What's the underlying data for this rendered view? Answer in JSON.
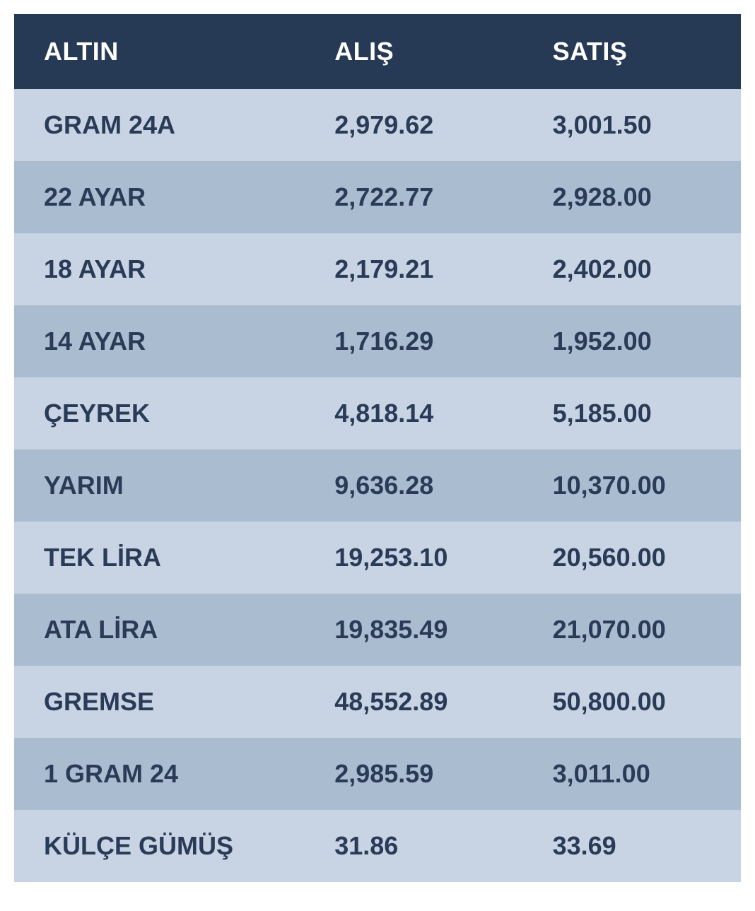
{
  "table": {
    "type": "table",
    "header_bg": "#263a56",
    "header_text_color": "#ffffff",
    "row_odd_bg": "#c8d3e3",
    "row_even_bg": "#aabccf",
    "cell_text_color": "#2a3b57",
    "header_fontsize_pt": 27,
    "cell_fontsize_pt": 27,
    "font_weight": 700,
    "columns": [
      {
        "key": "name",
        "label": "ALTIN",
        "width_pct": 40,
        "align": "left"
      },
      {
        "key": "buy",
        "label": "ALIŞ",
        "width_pct": 30,
        "align": "left"
      },
      {
        "key": "sell",
        "label": "SATIŞ",
        "width_pct": 30,
        "align": "left"
      }
    ],
    "rows": [
      {
        "name": "GRAM 24A",
        "buy": "2,979.62",
        "sell": "3,001.50"
      },
      {
        "name": "22 AYAR",
        "buy": "2,722.77",
        "sell": "2,928.00"
      },
      {
        "name": "18 AYAR",
        "buy": "2,179.21",
        "sell": "2,402.00"
      },
      {
        "name": "14 AYAR",
        "buy": "1,716.29",
        "sell": "1,952.00"
      },
      {
        "name": "ÇEYREK",
        "buy": "4,818.14",
        "sell": "5,185.00"
      },
      {
        "name": "YARIM",
        "buy": "9,636.28",
        "sell": "10,370.00"
      },
      {
        "name": "TEK LİRA",
        "buy": "19,253.10",
        "sell": "20,560.00"
      },
      {
        "name": "ATA LİRA",
        "buy": "19,835.49",
        "sell": "21,070.00"
      },
      {
        "name": "GREMSE",
        "buy": "48,552.89",
        "sell": "50,800.00"
      },
      {
        "name": "1 GRAM 24",
        "buy": "2,985.59",
        "sell": "3,011.00"
      },
      {
        "name": "KÜLÇE GÜMÜŞ",
        "buy": "31.86",
        "sell": "33.69"
      }
    ]
  }
}
